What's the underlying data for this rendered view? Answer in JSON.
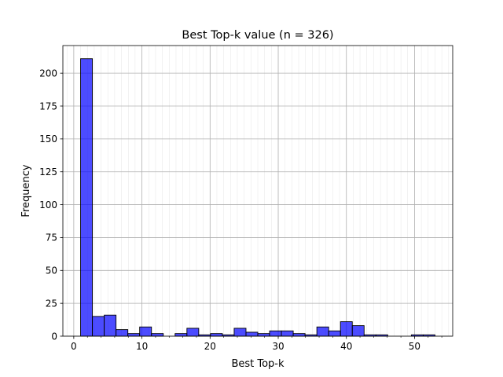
{
  "chart_data": {
    "type": "bar",
    "title": "Best Top-k value (n = 326)",
    "xlabel": "Best Top-k",
    "ylabel": "Frequency",
    "xlim": [
      -1.6,
      55.6
    ],
    "ylim": [
      0,
      221
    ],
    "x_ticks": [
      0,
      10,
      20,
      30,
      40,
      50
    ],
    "y_ticks": [
      0,
      25,
      50,
      75,
      100,
      125,
      150,
      175,
      200
    ],
    "grid": true,
    "bin_edges": [
      1.0,
      2.733,
      4.467,
      6.2,
      7.933,
      9.667,
      11.4,
      13.133,
      14.867,
      16.6,
      18.333,
      20.067,
      21.8,
      23.533,
      25.267,
      27.0,
      28.733,
      30.467,
      32.2,
      33.933,
      35.667,
      37.4,
      39.133,
      40.867,
      42.6,
      44.333,
      46.067,
      47.8,
      49.533,
      51.267,
      53.0
    ],
    "values": [
      211,
      15,
      16,
      5,
      2,
      7,
      2,
      0,
      2,
      6,
      1,
      2,
      1,
      6,
      3,
      2,
      4,
      4,
      2,
      1,
      7,
      4,
      11,
      8,
      1,
      1,
      0,
      0,
      1,
      1
    ],
    "series": [
      {
        "color": "#0000ff",
        "edge_color": "#000000"
      }
    ]
  }
}
